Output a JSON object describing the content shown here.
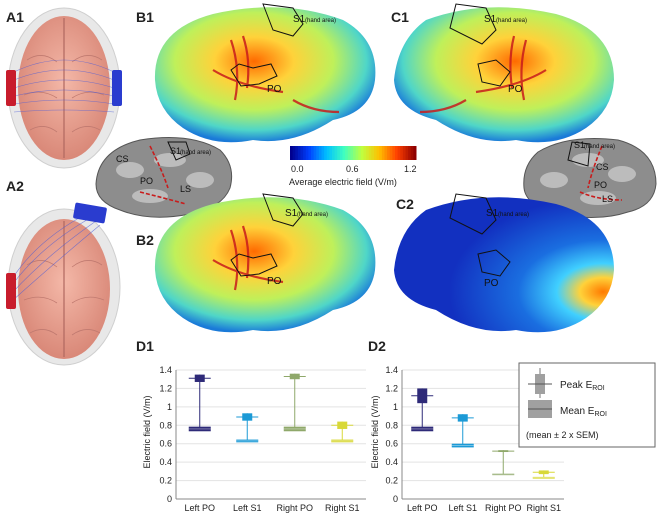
{
  "panels": {
    "A1": "A1",
    "A2": "A2",
    "B1": "B1",
    "B2": "B2",
    "C1": "C1",
    "C2": "C2",
    "D1": "D1",
    "D2": "D2"
  },
  "brain_labels": {
    "s1": "S1",
    "hand_area": "(hand area)",
    "po": "PO",
    "cs": "CS",
    "ls": "LS"
  },
  "colorbar": {
    "ticks": [
      "0.0",
      "0.6",
      "1.2"
    ],
    "label": "Average electric field (V/m)",
    "colors": [
      "#00008f",
      "#0040ff",
      "#00bfff",
      "#40ffbf",
      "#bfff40",
      "#ffbf00",
      "#ff4000",
      "#8f0000"
    ]
  },
  "colors": {
    "PO": "#2e2a78",
    "S1": "#1c9ad6",
    "rightPO": "#8fa86a",
    "rightS1": "#d8d838"
  },
  "chart_data": [
    {
      "type": "box",
      "panel": "D1",
      "ylabel": "Electric field (V/m)",
      "ylim": [
        0,
        1.4
      ],
      "yticks": [
        "0",
        "0.2",
        "0.4",
        "0.6",
        "0.8",
        "1",
        "1.2",
        "1.4"
      ],
      "categories": [
        "Left PO",
        "Left S1",
        "Right PO",
        "Right S1"
      ],
      "peak": [
        1.31,
        0.89,
        1.33,
        0.8
      ],
      "peak_err": [
        0.04,
        0.04,
        0.03,
        0.04
      ],
      "mean": [
        0.76,
        0.63,
        0.76,
        0.63
      ],
      "mean_err": [
        0.025,
        0.015,
        0.025,
        0.015
      ]
    },
    {
      "type": "box",
      "panel": "D2",
      "ylabel": "Electric field (V/m)",
      "ylim": [
        0,
        1.4
      ],
      "yticks": [
        "0",
        "0.2",
        "0.4",
        "0.6",
        "0.8",
        "1",
        "1.2",
        "1.4"
      ],
      "categories": [
        "Left PO",
        "Left S1",
        "Right PO",
        "Right S1"
      ],
      "peak": [
        1.12,
        0.88,
        0.52,
        0.29
      ],
      "peak_err": [
        0.08,
        0.04,
        0.01,
        0.02
      ],
      "mean": [
        0.76,
        0.58,
        0.27,
        0.23
      ],
      "mean_err": [
        0.025,
        0.02,
        0.005,
        0.01
      ]
    }
  ],
  "legend": {
    "peak": "Peak E",
    "mean": "Mean E",
    "sub": "ROI",
    "note": "(mean ± 2 x SEM)"
  }
}
